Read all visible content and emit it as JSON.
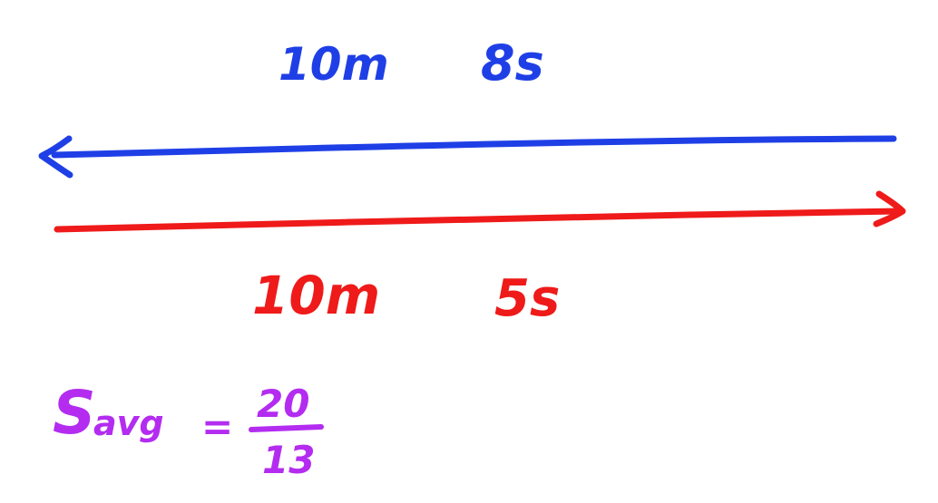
{
  "colors": {
    "upper": "#1f3fe6",
    "lower": "#ef1a1a",
    "formula": "#b32cf0"
  },
  "upper_arrow": {
    "distance": "10m",
    "time": "8s",
    "direction": "left"
  },
  "lower_arrow": {
    "distance": "10m",
    "time": "5s",
    "direction": "right"
  },
  "formula": {
    "lhs_symbol": "S",
    "lhs_subscript": "avg",
    "equals": "=",
    "numerator": "20",
    "denominator": "13"
  }
}
